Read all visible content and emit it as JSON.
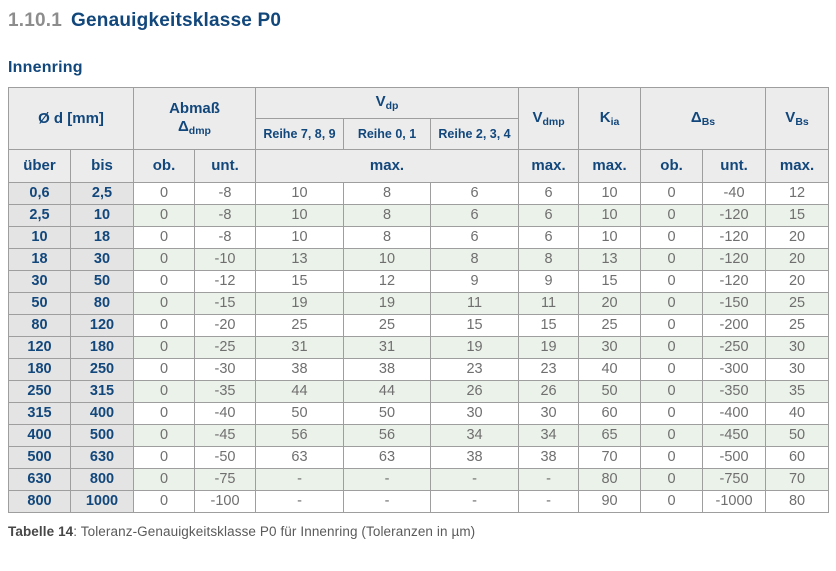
{
  "page": {
    "heading_number": "1.10.1",
    "heading_title": "Genauigkeitsklasse P0",
    "subtitle": "Innenring",
    "caption_label": "Tabelle 14",
    "caption_text": ": Toleranz-Genauigkeitsklasse P0 für Innenring (Toleranzen in µm)"
  },
  "colors": {
    "accent_blue": "#12477c",
    "header_background": "#ececec",
    "diameter_column_background": "#e4e4e4",
    "alternate_row_green": "#ebf2e9",
    "grid_border": "#9e9e9e",
    "data_text": "#6f6f6f"
  },
  "table": {
    "header": {
      "od_label": "Ø d  [mm]",
      "abmass_label": "Abmaß",
      "abmass_symbol": "Δ",
      "abmass_sub": "dmp",
      "vdp_label": "V",
      "vdp_sub": "dp",
      "reihe_789": "Reihe 7, 8, 9",
      "reihe_01": "Reihe 0, 1",
      "reihe_234": "Reihe 2, 3, 4",
      "vdmp_label": "V",
      "vdmp_sub": "dmp",
      "kia_label": "K",
      "kia_sub": "ia",
      "dbs_label": "Δ",
      "dbs_sub": "Bs",
      "vbs_label": "V",
      "vbs_sub": "Bs",
      "ueber": "über",
      "bis": "bis",
      "ob": "ob.",
      "unt": "unt.",
      "max": "max."
    },
    "rows": [
      [
        "0,6",
        "2,5",
        "0",
        "-8",
        "10",
        "8",
        "6",
        "6",
        "10",
        "0",
        "-40",
        "12"
      ],
      [
        "2,5",
        "10",
        "0",
        "-8",
        "10",
        "8",
        "6",
        "6",
        "10",
        "0",
        "-120",
        "15"
      ],
      [
        "10",
        "18",
        "0",
        "-8",
        "10",
        "8",
        "6",
        "6",
        "10",
        "0",
        "-120",
        "20"
      ],
      [
        "18",
        "30",
        "0",
        "-10",
        "13",
        "10",
        "8",
        "8",
        "13",
        "0",
        "-120",
        "20"
      ],
      [
        "30",
        "50",
        "0",
        "-12",
        "15",
        "12",
        "9",
        "9",
        "15",
        "0",
        "-120",
        "20"
      ],
      [
        "50",
        "80",
        "0",
        "-15",
        "19",
        "19",
        "11",
        "11",
        "20",
        "0",
        "-150",
        "25"
      ],
      [
        "80",
        "120",
        "0",
        "-20",
        "25",
        "25",
        "15",
        "15",
        "25",
        "0",
        "-200",
        "25"
      ],
      [
        "120",
        "180",
        "0",
        "-25",
        "31",
        "31",
        "19",
        "19",
        "30",
        "0",
        "-250",
        "30"
      ],
      [
        "180",
        "250",
        "0",
        "-30",
        "38",
        "38",
        "23",
        "23",
        "40",
        "0",
        "-300",
        "30"
      ],
      [
        "250",
        "315",
        "0",
        "-35",
        "44",
        "44",
        "26",
        "26",
        "50",
        "0",
        "-350",
        "35"
      ],
      [
        "315",
        "400",
        "0",
        "-40",
        "50",
        "50",
        "30",
        "30",
        "60",
        "0",
        "-400",
        "40"
      ],
      [
        "400",
        "500",
        "0",
        "-45",
        "56",
        "56",
        "34",
        "34",
        "65",
        "0",
        "-450",
        "50"
      ],
      [
        "500",
        "630",
        "0",
        "-50",
        "63",
        "63",
        "38",
        "38",
        "70",
        "0",
        "-500",
        "60"
      ],
      [
        "630",
        "800",
        "0",
        "-75",
        "-",
        "-",
        "-",
        "-",
        "80",
        "0",
        "-750",
        "70"
      ],
      [
        "800",
        "1000",
        "0",
        "-100",
        "-",
        "-",
        "-",
        "-",
        "90",
        "0",
        "-1000",
        "80"
      ]
    ]
  }
}
